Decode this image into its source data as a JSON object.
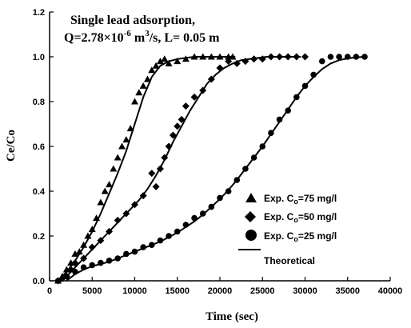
{
  "chart_data": {
    "type": "scatter",
    "title_line1": "Single lead adsorption,",
    "title_line2_prefix": "Q=2.78×10",
    "title_line2_exp": "-6",
    "title_line2_unit": " m",
    "title_line2_unit_exp": "3",
    "title_line2_suffix": "/s, L= 0.05 m",
    "xlabel": "Time (sec)",
    "ylabel": "Ce/Co",
    "xlim": [
      0,
      40000
    ],
    "ylim": [
      0,
      1.2
    ],
    "xticks": [
      "0",
      "5000",
      "10000",
      "15000",
      "20000",
      "25000",
      "30000",
      "35000",
      "40000"
    ],
    "yticks": [
      "0.0",
      "0.2",
      "0.4",
      "0.6",
      "0.8",
      "1.0",
      "1.2"
    ],
    "legend_position": "center-right",
    "series": [
      {
        "name_prefix": "Exp. C",
        "name_sub": "o",
        "name_suffix": "=75 mg/l",
        "marker": "triangle",
        "points": [
          [
            1000,
            0
          ],
          [
            1500,
            0.02
          ],
          [
            2000,
            0.05
          ],
          [
            2500,
            0.08
          ],
          [
            3000,
            0.12
          ],
          [
            3500,
            0.13
          ],
          [
            4000,
            0.16
          ],
          [
            4500,
            0.2
          ],
          [
            5000,
            0.23
          ],
          [
            5500,
            0.28
          ],
          [
            6000,
            0.35
          ],
          [
            6500,
            0.4
          ],
          [
            7000,
            0.43
          ],
          [
            7500,
            0.5
          ],
          [
            8000,
            0.55
          ],
          [
            8500,
            0.6
          ],
          [
            9000,
            0.63
          ],
          [
            9500,
            0.68
          ],
          [
            10000,
            0.8
          ],
          [
            10500,
            0.84
          ],
          [
            11000,
            0.87
          ],
          [
            11500,
            0.9
          ],
          [
            12000,
            0.94
          ],
          [
            12500,
            0.96
          ],
          [
            13000,
            0.98
          ],
          [
            13500,
            0.99
          ],
          [
            14000,
            0.97
          ],
          [
            15000,
            0.98
          ],
          [
            16000,
            0.99
          ],
          [
            17000,
            1.0
          ],
          [
            18000,
            1.0
          ],
          [
            19000,
            1.0
          ],
          [
            20000,
            1.0
          ],
          [
            21000,
            1.0
          ],
          [
            21500,
            1.0
          ]
        ]
      },
      {
        "name_prefix": "Exp. C",
        "name_sub": "o",
        "name_suffix": "=50 mg/l",
        "marker": "diamond",
        "points": [
          [
            1000,
            0
          ],
          [
            1500,
            0.01
          ],
          [
            2000,
            0.02
          ],
          [
            2500,
            0.05
          ],
          [
            3000,
            0.08
          ],
          [
            4000,
            0.1
          ],
          [
            5000,
            0.15
          ],
          [
            6000,
            0.18
          ],
          [
            7000,
            0.22
          ],
          [
            8000,
            0.27
          ],
          [
            9000,
            0.3
          ],
          [
            10000,
            0.34
          ],
          [
            11000,
            0.38
          ],
          [
            12000,
            0.48
          ],
          [
            12500,
            0.42
          ],
          [
            13000,
            0.5
          ],
          [
            13500,
            0.55
          ],
          [
            14000,
            0.6
          ],
          [
            14500,
            0.65
          ],
          [
            15000,
            0.69
          ],
          [
            15500,
            0.72
          ],
          [
            16000,
            0.78
          ],
          [
            17000,
            0.82
          ],
          [
            18000,
            0.85
          ],
          [
            19000,
            0.9
          ],
          [
            20000,
            0.95
          ],
          [
            21000,
            0.98
          ],
          [
            22000,
            0.97
          ],
          [
            23000,
            0.98
          ],
          [
            24000,
            0.99
          ],
          [
            25000,
            0.99
          ],
          [
            26000,
            1.0
          ],
          [
            27000,
            1.0
          ],
          [
            28000,
            1.0
          ],
          [
            29000,
            1.0
          ],
          [
            30000,
            1.0
          ]
        ]
      },
      {
        "name_prefix": "Exp. C",
        "name_sub": "o",
        "name_suffix": "=25 mg/l",
        "marker": "circle",
        "points": [
          [
            1000,
            0
          ],
          [
            2000,
            0.02
          ],
          [
            3000,
            0.04
          ],
          [
            4000,
            0.06
          ],
          [
            5000,
            0.07
          ],
          [
            6000,
            0.08
          ],
          [
            7000,
            0.09
          ],
          [
            8000,
            0.1
          ],
          [
            9000,
            0.12
          ],
          [
            10000,
            0.13
          ],
          [
            11000,
            0.15
          ],
          [
            12000,
            0.16
          ],
          [
            13000,
            0.18
          ],
          [
            14000,
            0.2
          ],
          [
            15000,
            0.22
          ],
          [
            16000,
            0.25
          ],
          [
            17000,
            0.28
          ],
          [
            18000,
            0.3
          ],
          [
            19000,
            0.33
          ],
          [
            20000,
            0.37
          ],
          [
            21000,
            0.4
          ],
          [
            22000,
            0.45
          ],
          [
            23000,
            0.5
          ],
          [
            24000,
            0.55
          ],
          [
            25000,
            0.6
          ],
          [
            26000,
            0.66
          ],
          [
            27000,
            0.72
          ],
          [
            28000,
            0.76
          ],
          [
            29000,
            0.82
          ],
          [
            30000,
            0.87
          ],
          [
            31000,
            0.92
          ],
          [
            32000,
            0.98
          ],
          [
            33000,
            1.0
          ],
          [
            34000,
            1.0
          ],
          [
            35000,
            1.0
          ],
          [
            36000,
            1.0
          ],
          [
            37000,
            1.0
          ]
        ]
      }
    ],
    "theoretical": {
      "name": "Theoretical",
      "curves": [
        [
          [
            1000,
            0
          ],
          [
            2000,
            0.04
          ],
          [
            3000,
            0.09
          ],
          [
            4000,
            0.15
          ],
          [
            5000,
            0.22
          ],
          [
            6000,
            0.3
          ],
          [
            7000,
            0.39
          ],
          [
            8000,
            0.48
          ],
          [
            9000,
            0.58
          ],
          [
            10000,
            0.7
          ],
          [
            11000,
            0.82
          ],
          [
            12000,
            0.91
          ],
          [
            13000,
            0.96
          ],
          [
            14000,
            0.98
          ],
          [
            15000,
            0.99
          ],
          [
            16000,
            0.995
          ],
          [
            17000,
            1.0
          ],
          [
            18000,
            1.0
          ],
          [
            19000,
            1.0
          ],
          [
            20000,
            1.0
          ],
          [
            21000,
            1.0
          ],
          [
            21800,
            1.0
          ]
        ],
        [
          [
            1500,
            0
          ],
          [
            2500,
            0.04
          ],
          [
            3500,
            0.08
          ],
          [
            4500,
            0.12
          ],
          [
            5500,
            0.16
          ],
          [
            6500,
            0.2
          ],
          [
            7500,
            0.24
          ],
          [
            8500,
            0.28
          ],
          [
            9500,
            0.32
          ],
          [
            10500,
            0.36
          ],
          [
            11500,
            0.41
          ],
          [
            12500,
            0.47
          ],
          [
            13500,
            0.54
          ],
          [
            14500,
            0.62
          ],
          [
            15500,
            0.69
          ],
          [
            16500,
            0.76
          ],
          [
            17500,
            0.82
          ],
          [
            18500,
            0.88
          ],
          [
            19500,
            0.92
          ],
          [
            20500,
            0.95
          ],
          [
            21500,
            0.97
          ],
          [
            22500,
            0.985
          ],
          [
            23500,
            0.99
          ],
          [
            24500,
            0.995
          ],
          [
            25500,
            1.0
          ],
          [
            26500,
            1.0
          ],
          [
            27500,
            1.0
          ],
          [
            28500,
            1.0
          ],
          [
            29500,
            1.0
          ]
        ],
        [
          [
            2000,
            0
          ],
          [
            3000,
            0.03
          ],
          [
            4000,
            0.05
          ],
          [
            5000,
            0.065
          ],
          [
            6000,
            0.075
          ],
          [
            7000,
            0.085
          ],
          [
            8000,
            0.1
          ],
          [
            9000,
            0.115
          ],
          [
            10000,
            0.13
          ],
          [
            11000,
            0.145
          ],
          [
            12000,
            0.16
          ],
          [
            13000,
            0.175
          ],
          [
            14000,
            0.195
          ],
          [
            15000,
            0.215
          ],
          [
            16000,
            0.24
          ],
          [
            17000,
            0.265
          ],
          [
            18000,
            0.295
          ],
          [
            19000,
            0.33
          ],
          [
            20000,
            0.365
          ],
          [
            21000,
            0.405
          ],
          [
            22000,
            0.45
          ],
          [
            23000,
            0.5
          ],
          [
            24000,
            0.55
          ],
          [
            25000,
            0.6
          ],
          [
            26000,
            0.655
          ],
          [
            27000,
            0.71
          ],
          [
            28000,
            0.765
          ],
          [
            29000,
            0.82
          ],
          [
            30000,
            0.87
          ],
          [
            31000,
            0.91
          ],
          [
            32000,
            0.945
          ],
          [
            33000,
            0.97
          ],
          [
            34000,
            0.985
          ],
          [
            35000,
            0.993
          ],
          [
            36000,
            0.998
          ],
          [
            37000,
            1.0
          ]
        ]
      ]
    }
  }
}
